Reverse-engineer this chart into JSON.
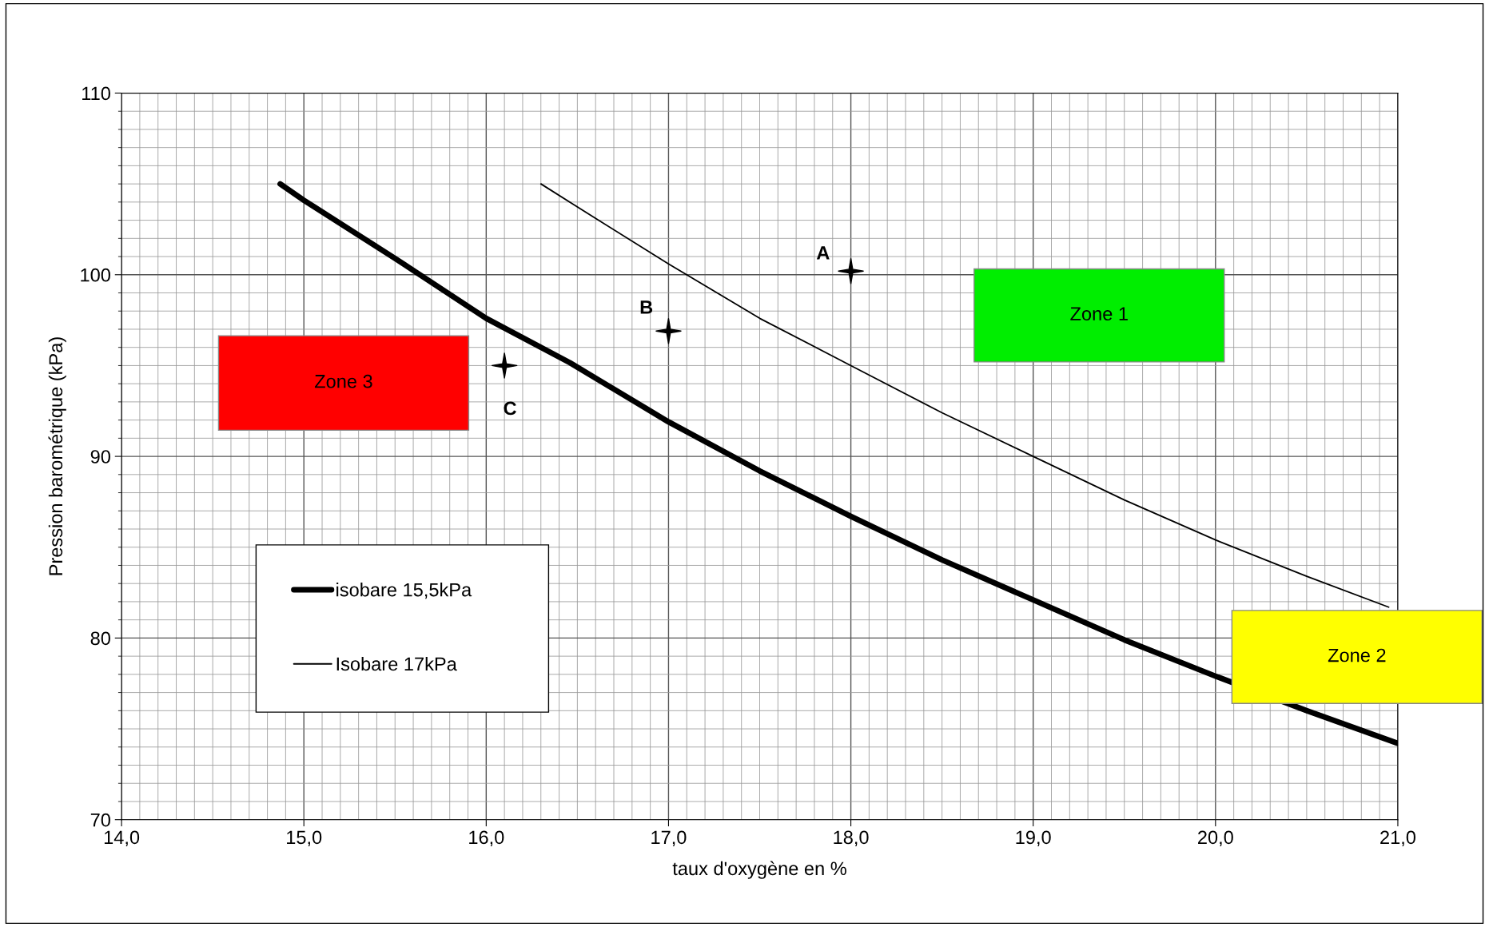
{
  "chart_data": {
    "type": "line",
    "xlabel": "taux d'oxygène en %",
    "ylabel": "Pression barométrique (kPa)",
    "xlim": [
      14.0,
      21.0
    ],
    "xticks": [
      {
        "value": 14,
        "label": "14,0"
      },
      {
        "value": 15,
        "label": "15,0"
      },
      {
        "value": 16,
        "label": "16,0"
      },
      {
        "value": 17,
        "label": "17,0"
      },
      {
        "value": 18,
        "label": "18,0"
      },
      {
        "value": 19,
        "label": "19,0"
      },
      {
        "value": 20,
        "label": "20,0"
      },
      {
        "value": 21,
        "label": "21,0"
      }
    ],
    "ylim": [
      70,
      110
    ],
    "yticks": [
      70,
      80,
      90,
      100,
      110
    ],
    "grid": true,
    "legend": "bottom left",
    "line_style": "solid",
    "series": [
      {
        "name": "isobare 15,5kPa",
        "color": "#000000",
        "x": [
          14.87,
          15.0,
          15.5,
          16.0,
          16.46,
          17.0,
          17.5,
          18.0,
          18.5,
          19.0,
          19.5,
          20.0,
          20.5,
          21.0
        ],
        "values": [
          105,
          104.1,
          100.9,
          97.6,
          95.15,
          91.9,
          89.2,
          86.7,
          84.3,
          82.1,
          79.9,
          77.9,
          76.0,
          74.2
        ]
      },
      {
        "name": "Isobare 17kPa",
        "color": "#000000",
        "x": [
          16.3,
          16.6,
          17.0,
          17.5,
          18.0,
          18.5,
          19.0,
          19.5,
          20.0,
          20.5,
          20.95
        ],
        "values": [
          105,
          103.1,
          100.6,
          97.6,
          95.0,
          92.4,
          90.0,
          87.6,
          85.4,
          83.4,
          81.7
        ]
      },
      {
        "type": "scatter",
        "color": "#000000",
        "marker": "star",
        "x": [
          18.0,
          17.0,
          16.1
        ],
        "values": [
          100.2,
          96.9,
          95.0
        ]
      }
    ],
    "annotations": [
      "Zone 1",
      "Zone 2",
      "Zone 3",
      {
        "text": "A",
        "x": 18.0,
        "y": 100.2
      },
      {
        "text": "B",
        "x": 17.0,
        "y": 96.9
      },
      {
        "text": "C",
        "x": 16.1,
        "y": 95.0
      }
    ]
  }
}
